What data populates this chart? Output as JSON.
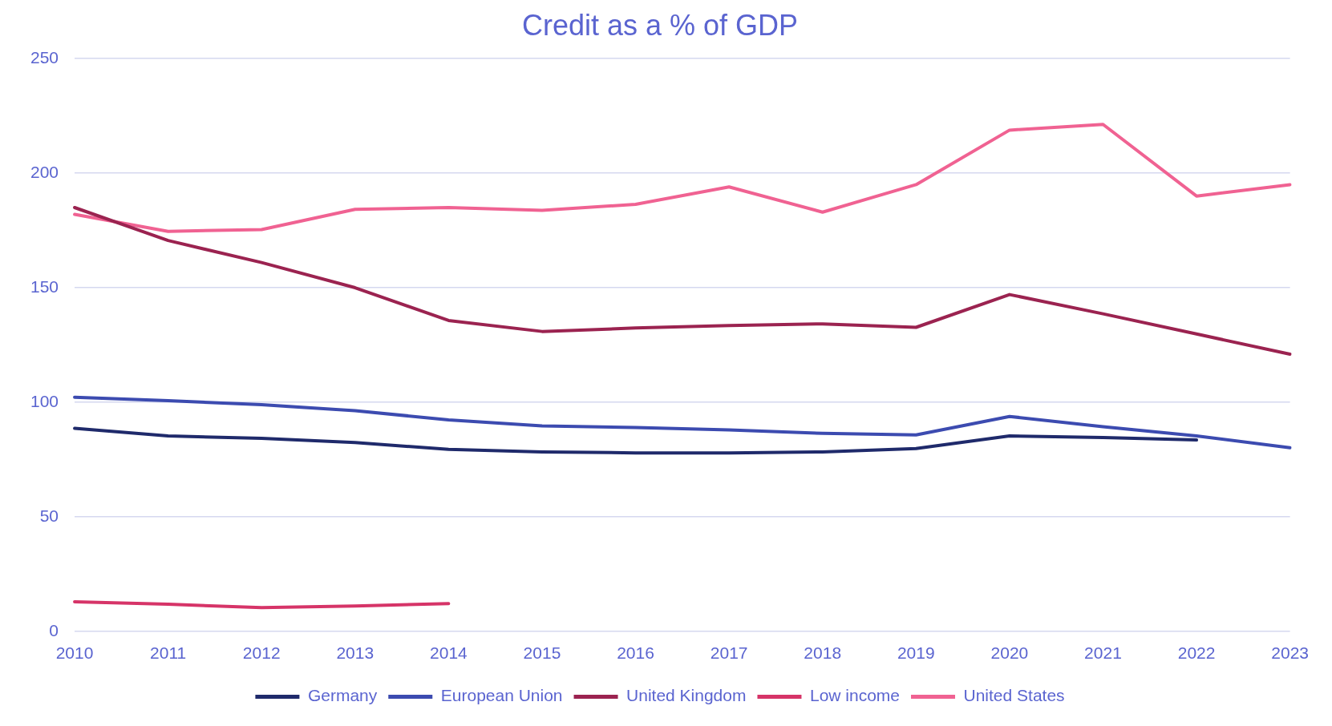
{
  "chart_data": {
    "type": "line",
    "title": "Credit as a % of GDP",
    "categories": [
      "2010",
      "2011",
      "2012",
      "2013",
      "2014",
      "2015",
      "2016",
      "2017",
      "2018",
      "2019",
      "2020",
      "2021",
      "2022",
      "2023"
    ],
    "series": [
      {
        "name": "Germany",
        "color": "#1f2a6b",
        "values": [
          88.6,
          85.3,
          84.2,
          82.4,
          79.4,
          78.3,
          77.9,
          77.9,
          78.3,
          79.8,
          85.3,
          84.6,
          83.5,
          null
        ]
      },
      {
        "name": "European Union",
        "color": "#3c4bb0",
        "values": [
          102.2,
          100.7,
          98.9,
          96.3,
          92.3,
          89.7,
          89,
          87.9,
          86.4,
          85.7,
          93.8,
          89.3,
          85.3,
          80.1
        ]
      },
      {
        "name": "United Kingdom",
        "color": "#9b2350",
        "values": [
          185,
          170.6,
          161,
          150,
          135.7,
          130.9,
          132.4,
          133.5,
          134.2,
          132.7,
          147,
          138.6,
          129.8,
          121
        ]
      },
      {
        "name": "Low income",
        "color": "#d63468",
        "values": [
          12.9,
          11.8,
          10.3,
          11,
          12.1,
          null,
          null,
          null,
          null,
          null,
          null,
          null,
          null,
          null
        ]
      },
      {
        "name": "United States",
        "color": "#f06292",
        "values": [
          182,
          174.6,
          175.4,
          184.2,
          185,
          183.8,
          186.4,
          194,
          183,
          195,
          218.8,
          221.3,
          190,
          195
        ]
      }
    ],
    "ylim": [
      0,
      250
    ],
    "yticks": [
      0,
      50,
      100,
      150,
      200,
      250
    ],
    "grid": "y",
    "legend": "bottom",
    "marker": "none",
    "line_style": "solid"
  }
}
